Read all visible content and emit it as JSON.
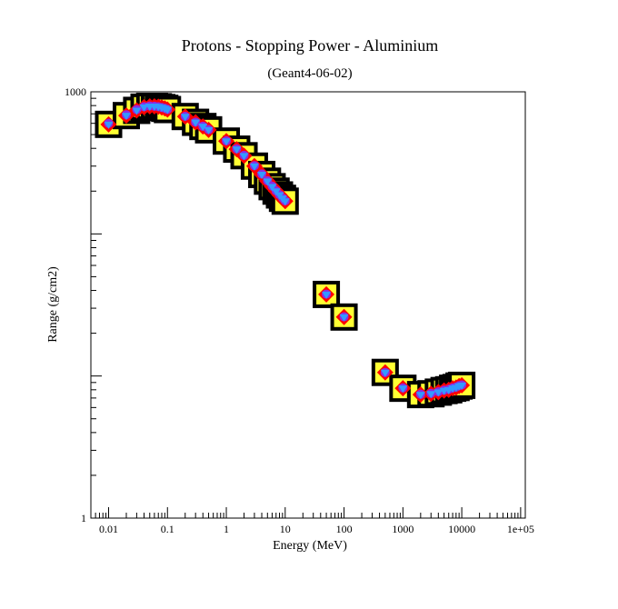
{
  "chart_data": {
    "type": "scatter",
    "title": "Protons - Stopping Power - Aluminium",
    "subtitle": "(Geant4-06-02)",
    "xlabel": "Energy (MeV)",
    "ylabel": "Range (g/cm2)",
    "xscale": "log",
    "yscale": "log",
    "xlim": [
      0.005,
      120000
    ],
    "ylim": [
      1,
      1000
    ],
    "x_tick_labels": [
      "0.01",
      "0.1",
      "1",
      "10",
      "100",
      "1000",
      "10000",
      "1e+05"
    ],
    "y_tick_labels": [
      "1",
      "1000"
    ],
    "grid": false,
    "legend": "none",
    "colors": {
      "outer_square": "#000000",
      "inner_square": "#ffff33",
      "diamond": "#ff0000",
      "circle": "#8a2be2",
      "triangle": "#3399ff"
    },
    "x": [
      0.01,
      0.02,
      0.03,
      0.04,
      0.05,
      0.06,
      0.07,
      0.08,
      0.09,
      0.1,
      0.2,
      0.3,
      0.4,
      0.5,
      1,
      1.5,
      2,
      3,
      4,
      5,
      6,
      7,
      8,
      9,
      10,
      50,
      100,
      500,
      1000,
      2000,
      3000,
      4000,
      5000,
      6000,
      7000,
      8000,
      9000,
      10000
    ],
    "series": [
      {
        "marker": "square",
        "values": [
          590,
          680,
          740,
          780,
          790,
          790,
          785,
          775,
          765,
          750,
          670,
          610,
          570,
          540,
          450,
          395,
          355,
          300,
          262,
          235,
          215,
          200,
          188,
          178,
          170,
          37.5,
          26,
          10.6,
          8.2,
          7.4,
          7.5,
          7.7,
          7.9,
          8.0,
          8.2,
          8.3,
          8.5,
          8.6
        ]
      },
      {
        "marker": "diamond",
        "values": [
          590,
          680,
          740,
          780,
          790,
          790,
          785,
          775,
          765,
          750,
          670,
          610,
          570,
          540,
          450,
          395,
          355,
          300,
          262,
          235,
          215,
          200,
          188,
          178,
          170,
          37.5,
          26,
          10.6,
          8.2,
          7.4,
          7.5,
          7.7,
          7.9,
          8.0,
          8.2,
          8.3,
          8.5,
          8.6
        ]
      },
      {
        "marker": "circle",
        "values": [
          600,
          690,
          750,
          785,
          795,
          792,
          786,
          776,
          766,
          752,
          672,
          612,
          572,
          542,
          452,
          397,
          357,
          302,
          264,
          237,
          217,
          201,
          189,
          179,
          171,
          37.7,
          26.1,
          10.6,
          8.25,
          7.45,
          7.55,
          7.75,
          7.95,
          8.05,
          8.25,
          8.35,
          8.55,
          8.65
        ]
      },
      {
        "marker": "triangle",
        "values": [
          590,
          680,
          740,
          780,
          790,
          790,
          785,
          775,
          765,
          750,
          670,
          610,
          570,
          540,
          450,
          395,
          355,
          300,
          262,
          235,
          215,
          200,
          188,
          178,
          170,
          37.5,
          26,
          10.6,
          8.2,
          7.4,
          7.5,
          7.7,
          7.9,
          8.0,
          8.2,
          8.3,
          8.5,
          8.6
        ]
      }
    ]
  }
}
